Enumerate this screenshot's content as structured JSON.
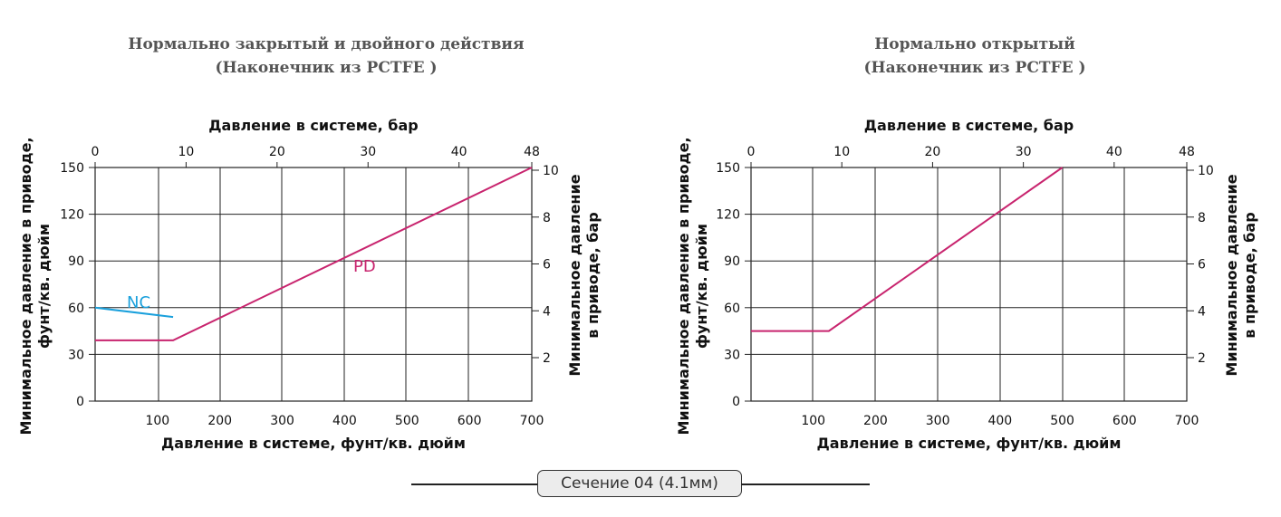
{
  "footer": {
    "section_label": "Сечение 04 (4.1мм)"
  },
  "colors": {
    "pd_line": "#c8246e",
    "nc_line": "#1aa0dc",
    "grid": "#222222",
    "text": "#111111"
  },
  "chart_data": [
    {
      "type": "line",
      "title": "Нормально закрытый и двойного действия",
      "subtitle": "(Наконечник из PCTFE )",
      "xlabel": "Давление в системе, фунт/кв. дюйм",
      "x2label": "Давление в системе, бар",
      "ylabel": "Минимальное давление в приводе, фунт/кв. дюйм",
      "y2label": "Минимальное давление в приводе, бар",
      "xlim": [
        0,
        700
      ],
      "ylim": [
        0,
        150
      ],
      "x_ticks": [
        100,
        200,
        300,
        400,
        500,
        600,
        700
      ],
      "y_ticks": [
        0,
        30,
        60,
        90,
        120,
        150
      ],
      "x2_ticks": [
        0,
        10,
        20,
        30,
        40,
        48
      ],
      "y2_ticks": [
        2,
        4,
        6,
        8,
        10
      ],
      "grid": true,
      "series": [
        {
          "name": "PD",
          "x": [
            0,
            125,
            700
          ],
          "y": [
            39,
            39,
            150
          ]
        },
        {
          "name": "NC",
          "x": [
            0,
            125
          ],
          "y": [
            60,
            54
          ]
        }
      ]
    },
    {
      "type": "line",
      "title": "Нормально открытый",
      "subtitle": "(Наконечник из PCTFE )",
      "xlabel": "Давление в системе, фунт/кв. дюйм",
      "x2label": "Давление в системе, бар",
      "ylabel": "Минимальное давление в приводе, фунт/кв. дюйм",
      "y2label": "Минимальное давление в приводе, бар",
      "xlim": [
        0,
        700
      ],
      "ylim": [
        0,
        150
      ],
      "x_ticks": [
        100,
        200,
        300,
        400,
        500,
        600,
        700
      ],
      "y_ticks": [
        0,
        30,
        60,
        90,
        120,
        150
      ],
      "x2_ticks": [
        0,
        10,
        20,
        30,
        40,
        48
      ],
      "y2_ticks": [
        2,
        4,
        6,
        8,
        10
      ],
      "grid": true,
      "series": [
        {
          "x": [
            0,
            125,
            500
          ],
          "y": [
            45,
            45,
            150
          ]
        }
      ]
    }
  ]
}
